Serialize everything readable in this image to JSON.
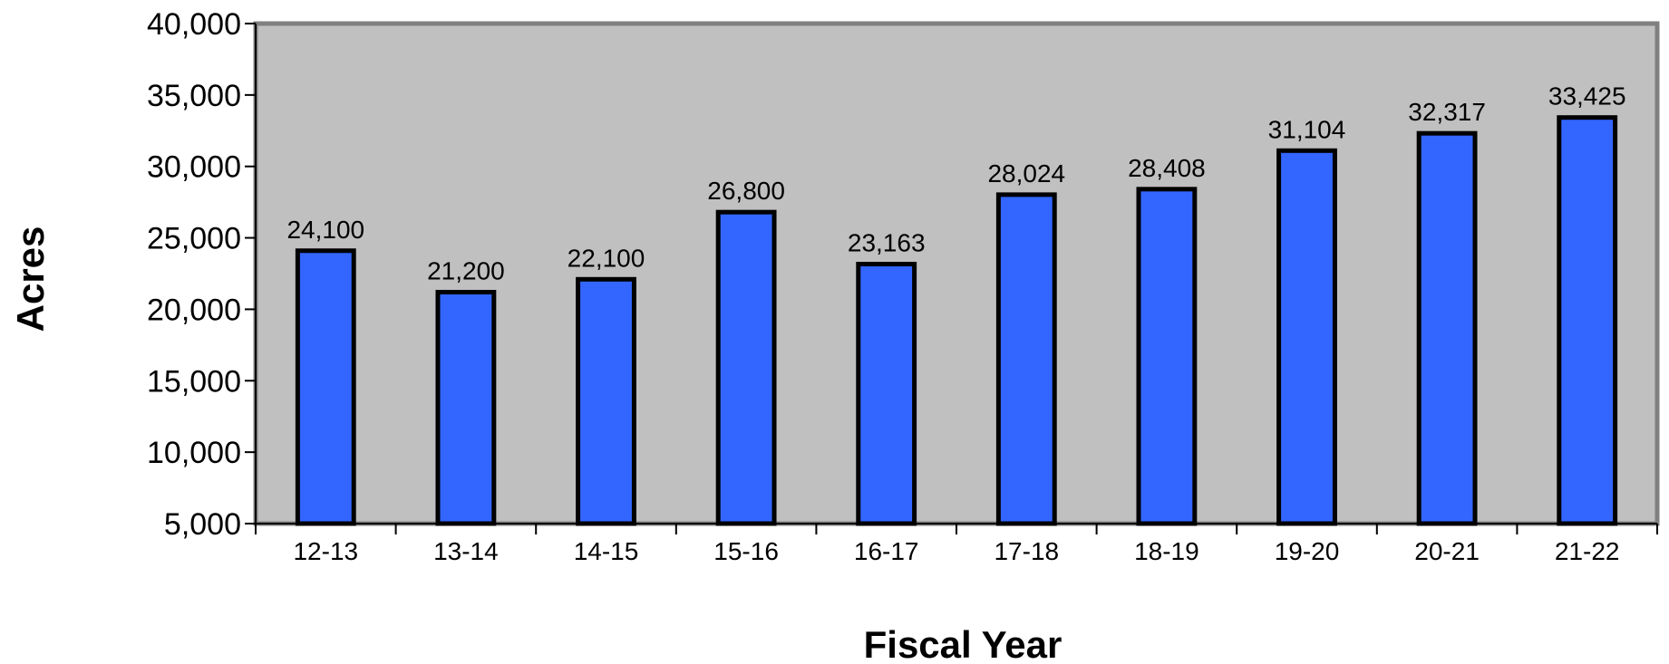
{
  "chart_data": {
    "type": "bar",
    "title": "",
    "xlabel": "Fiscal Year",
    "ylabel": "Acres",
    "categories": [
      "12-13",
      "13-14",
      "14-15",
      "15-16",
      "16-17",
      "17-18",
      "18-19",
      "19-20",
      "20-21",
      "21-22"
    ],
    "values": [
      24100,
      21200,
      22100,
      26800,
      23163,
      28024,
      28408,
      31104,
      32317,
      33425
    ],
    "value_labels": [
      "24,100",
      "21,200",
      "22,100",
      "26,800",
      "23,163",
      "28,024",
      "28,408",
      "31,104",
      "32,317",
      "33,425"
    ],
    "ylim": [
      5000,
      40000
    ],
    "yticks": [
      5000,
      10000,
      15000,
      20000,
      25000,
      30000,
      35000,
      40000
    ],
    "ytick_labels": [
      "5,000",
      "10,000",
      "15,000",
      "20,000",
      "25,000",
      "30,000",
      "35,000",
      "40,000"
    ],
    "grid": false,
    "legend": "none",
    "colors": {
      "bar": "#3366FF",
      "plot_background": "#C0C0C0",
      "outline": "#000000"
    }
  }
}
